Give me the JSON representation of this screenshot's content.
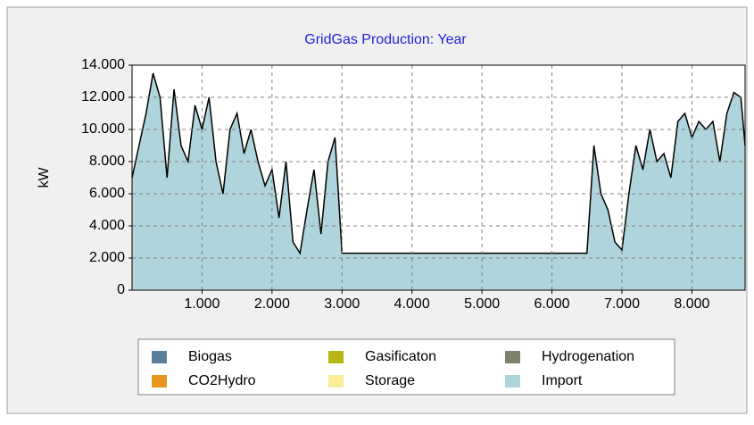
{
  "chart_data": {
    "type": "area",
    "title": "GridGas Production: Year",
    "ylabel": "kW",
    "x": [
      0,
      100,
      200,
      300,
      400,
      500,
      600,
      700,
      800,
      900,
      1000,
      1100,
      1200,
      1300,
      1400,
      1500,
      1600,
      1700,
      1800,
      1900,
      2000,
      2100,
      2200,
      2300,
      2400,
      2500,
      2600,
      2700,
      2800,
      2900,
      3000,
      6500,
      6600,
      6700,
      6800,
      6900,
      7000,
      7100,
      7200,
      7300,
      7400,
      7500,
      7600,
      7700,
      7800,
      7900,
      8000,
      8100,
      8200,
      8300,
      8400,
      8500,
      8600,
      8700,
      8760
    ],
    "series": [
      {
        "name": "Biogas",
        "color": "#5b7f9b"
      },
      {
        "name": "CO2Hydro",
        "color": "#e8961e"
      },
      {
        "name": "Gasificaton",
        "color": "#b5b516"
      },
      {
        "name": "Storage",
        "color": "#f8eb9a"
      },
      {
        "name": "Hydrogenation",
        "color": "#7f7f6a"
      },
      {
        "name": "Import",
        "color": "#b0d4dc",
        "values": [
          7000,
          9000,
          11000,
          13500,
          12000,
          7000,
          12500,
          9000,
          8000,
          11500,
          10000,
          12000,
          8000,
          6000,
          10000,
          11000,
          8500,
          10000,
          8000,
          6500,
          7500,
          4500,
          8000,
          3000,
          2300,
          5000,
          7500,
          3500,
          8000,
          9500,
          2300,
          2300,
          9000,
          6000,
          5000,
          3000,
          2500,
          6000,
          9000,
          7500,
          10000,
          8000,
          8500,
          7000,
          10500,
          11000,
          9500,
          10500,
          10000,
          10500,
          8000,
          11000,
          12300,
          12000,
          9000
        ]
      }
    ],
    "xlim": [
      0,
      8760
    ],
    "ylim": [
      0,
      14000
    ],
    "xticks": [
      {
        "value": 1000,
        "label": "1.000"
      },
      {
        "value": 2000,
        "label": "2.000"
      },
      {
        "value": 3000,
        "label": "3.000"
      },
      {
        "value": 4000,
        "label": "4.000"
      },
      {
        "value": 5000,
        "label": "5.000"
      },
      {
        "value": 6000,
        "label": "6.000"
      },
      {
        "value": 7000,
        "label": "7.000"
      },
      {
        "value": 8000,
        "label": "8.000"
      }
    ],
    "yticks": [
      0,
      {
        "value": 2000,
        "label": "2.000"
      },
      {
        "value": 4000,
        "label": "4.000"
      },
      {
        "value": 6000,
        "label": "6.000"
      },
      {
        "value": 8000,
        "label": "8.000"
      },
      {
        "value": 10000,
        "label": "10.000"
      },
      {
        "value": 12000,
        "label": "12.000"
      },
      {
        "value": 14000,
        "label": "14.000"
      }
    ],
    "grid": true
  }
}
